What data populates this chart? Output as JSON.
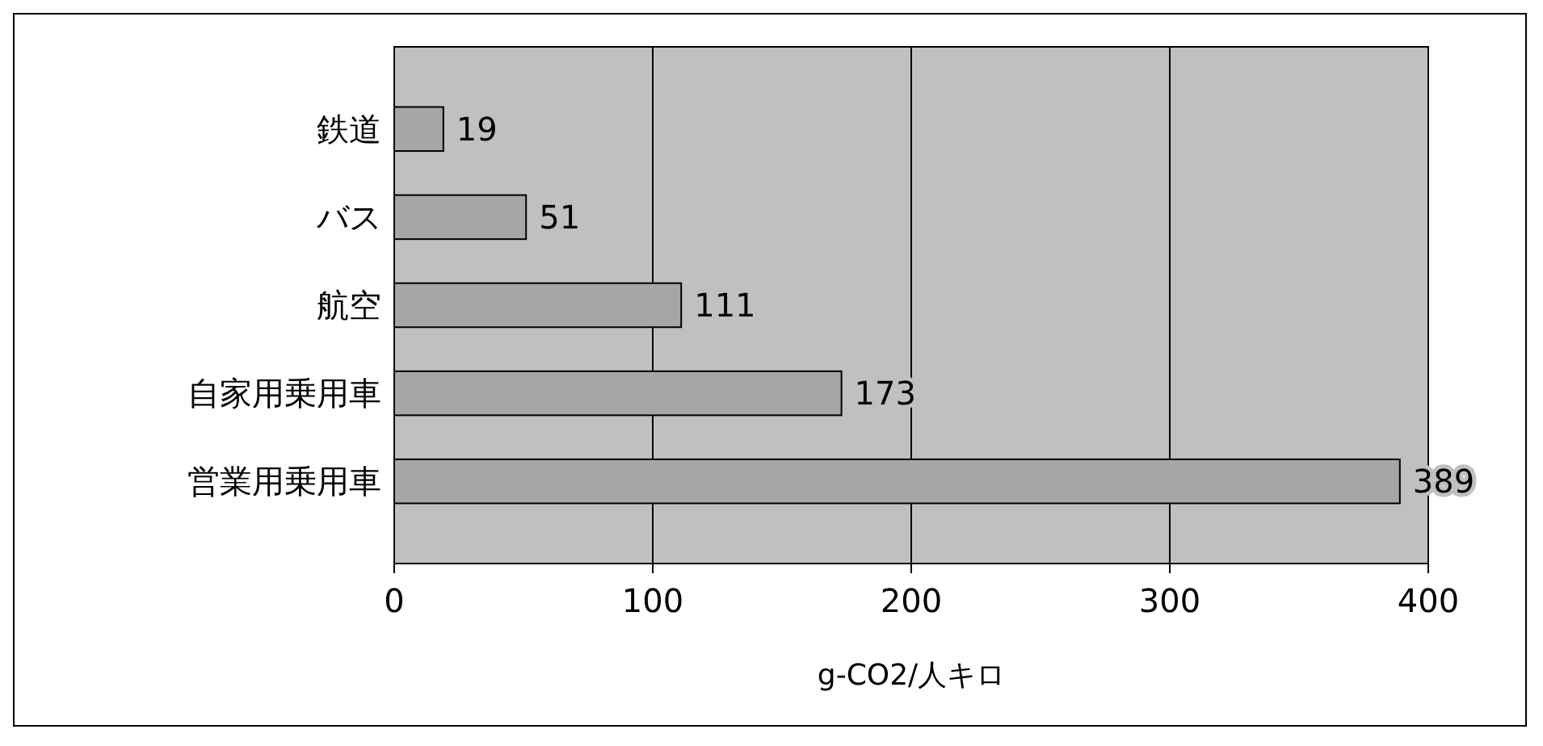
{
  "chart_data": {
    "type": "bar",
    "orientation": "horizontal",
    "categories": [
      "鉄道",
      "バス",
      "航空",
      "自家用乗用車",
      "営業用乗用車"
    ],
    "values": [
      19,
      51,
      111,
      173,
      389
    ],
    "color": "#a6a6a6",
    "xlim": [
      0,
      400
    ],
    "xticks": [
      0,
      100,
      200,
      300,
      400
    ],
    "xlabel": "g-CO2/人キロ",
    "grid": "x",
    "data_labels": true
  }
}
